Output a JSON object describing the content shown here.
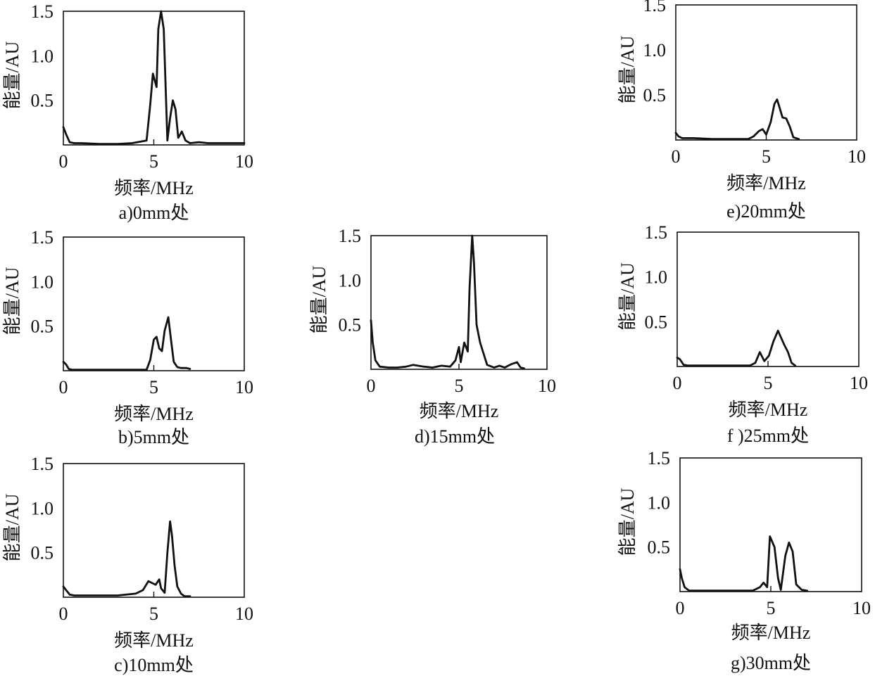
{
  "chart_data": [
    {
      "type": "line",
      "caption": "a)0mm处",
      "xlabel": "频率/MHz",
      "ylabel": "能量/AU",
      "xlim": [
        0,
        10
      ],
      "ylim": [
        0,
        1.5
      ],
      "xticks": [
        "0",
        "5",
        "10"
      ],
      "yticks": [
        "0.5",
        "1.0",
        "1.5"
      ],
      "x": [
        0,
        0.15,
        0.35,
        0.6,
        1,
        2,
        3,
        3.8,
        4.6,
        4.8,
        4.95,
        5.15,
        5.25,
        5.4,
        5.55,
        5.75,
        5.9,
        6.05,
        6.2,
        6.35,
        6.55,
        6.75,
        7,
        7.5,
        8,
        9,
        10
      ],
      "y": [
        0.2,
        0.12,
        0.03,
        0.02,
        0.02,
        0.01,
        0.01,
        0.02,
        0.05,
        0.45,
        0.8,
        0.65,
        1.3,
        1.5,
        1.3,
        0.05,
        0.3,
        0.5,
        0.4,
        0.08,
        0.15,
        0.05,
        0.02,
        0.03,
        0.02,
        0.02,
        0.02
      ]
    },
    {
      "type": "line",
      "caption": "b)5mm处",
      "xlabel": "频率/MHz",
      "ylabel": "能量/AU",
      "xlim": [
        0,
        10
      ],
      "ylim": [
        0,
        1.5
      ],
      "xticks": [
        "0",
        "5",
        "10"
      ],
      "yticks": [
        "0.5",
        "1.0",
        "1.5"
      ],
      "x": [
        0,
        0.15,
        0.3,
        0.5,
        1,
        2,
        3,
        4,
        4.6,
        4.8,
        5.0,
        5.15,
        5.3,
        5.45,
        5.6,
        5.8,
        5.95,
        6.1,
        6.3,
        6.5,
        6.8,
        7
      ],
      "y": [
        0.1,
        0.07,
        0.02,
        0.01,
        0.01,
        0.01,
        0.01,
        0.01,
        0.01,
        0.12,
        0.35,
        0.38,
        0.25,
        0.22,
        0.45,
        0.6,
        0.35,
        0.1,
        0.04,
        0.03,
        0.03,
        0.02
      ]
    },
    {
      "type": "line",
      "caption": "c)10mm处",
      "xlabel": "频率/MHz",
      "ylabel": "能量/AU",
      "xlim": [
        0,
        10
      ],
      "ylim": [
        0,
        1.5
      ],
      "xticks": [
        "0",
        "5",
        "10"
      ],
      "yticks": [
        "0.5",
        "1.0",
        "1.5"
      ],
      "x": [
        0,
        0.15,
        0.35,
        0.6,
        1,
        2,
        3,
        4,
        4.4,
        4.7,
        4.9,
        5.1,
        5.3,
        5.4,
        5.6,
        5.75,
        5.9,
        6.0,
        6.15,
        6.3,
        6.5,
        6.7,
        7
      ],
      "y": [
        0.12,
        0.08,
        0.03,
        0.02,
        0.02,
        0.02,
        0.02,
        0.04,
        0.08,
        0.18,
        0.16,
        0.14,
        0.2,
        0.1,
        0.05,
        0.5,
        0.85,
        0.7,
        0.35,
        0.12,
        0.04,
        0.01,
        0.01
      ]
    },
    {
      "type": "line",
      "caption": "d)15mm处",
      "xlabel": "频率/MHz",
      "ylabel": "能量/AU",
      "xlim": [
        0,
        10
      ],
      "ylim": [
        0,
        1.5
      ],
      "xticks": [
        "0",
        "5",
        "10"
      ],
      "yticks": [
        "0.5",
        "1.0",
        "1.5"
      ],
      "x": [
        0,
        0.1,
        0.25,
        0.5,
        1,
        1.5,
        2,
        2.4,
        3,
        3.5,
        4,
        4.5,
        4.8,
        5,
        5.1,
        5.3,
        5.5,
        5.6,
        5.75,
        5.85,
        6.0,
        6.2,
        6.6,
        7,
        7.3,
        7.6,
        7.8,
        8.0,
        8.3,
        8.5,
        8.7
      ],
      "y": [
        0.55,
        0.3,
        0.1,
        0.03,
        0.02,
        0.02,
        0.03,
        0.05,
        0.03,
        0.02,
        0.04,
        0.03,
        0.1,
        0.25,
        0.08,
        0.3,
        0.2,
        0.9,
        1.5,
        1.2,
        0.5,
        0.3,
        0.05,
        0.02,
        0.04,
        0.02,
        0.04,
        0.06,
        0.08,
        0.02,
        0.01
      ]
    },
    {
      "type": "line",
      "caption": "e)20mm处",
      "xlabel": "频率/MHz",
      "ylabel": "能量/AU",
      "xlim": [
        0,
        10
      ],
      "ylim": [
        0,
        1.5
      ],
      "xticks": [
        "0",
        "5",
        "10"
      ],
      "yticks": [
        "0.5",
        "1.0",
        "1.5"
      ],
      "x": [
        0,
        0.15,
        0.35,
        0.6,
        1,
        2,
        3,
        4,
        4.3,
        4.6,
        4.8,
        5.0,
        5.25,
        5.45,
        5.6,
        5.75,
        5.9,
        6.1,
        6.3,
        6.5,
        6.8
      ],
      "y": [
        0.08,
        0.04,
        0.02,
        0.02,
        0.02,
        0.01,
        0.01,
        0.01,
        0.04,
        0.1,
        0.12,
        0.06,
        0.2,
        0.4,
        0.45,
        0.35,
        0.25,
        0.24,
        0.15,
        0.03,
        0.01
      ]
    },
    {
      "type": "line",
      "caption": "f )25mm处",
      "xlabel": "频率/MHz",
      "ylabel": "能量/AU",
      "xlim": [
        0,
        10
      ],
      "ylim": [
        0,
        1.5
      ],
      "xticks": [
        "0",
        "5",
        "10"
      ],
      "yticks": [
        "0.5",
        "1.0",
        "1.5"
      ],
      "x": [
        0,
        0.15,
        0.35,
        0.6,
        1,
        2,
        3,
        4,
        4.3,
        4.55,
        4.8,
        5.05,
        5.3,
        5.55,
        5.7,
        5.9,
        6.1,
        6.3,
        6.5
      ],
      "y": [
        0.1,
        0.08,
        0.02,
        0.01,
        0.01,
        0.01,
        0.01,
        0.01,
        0.04,
        0.16,
        0.06,
        0.12,
        0.28,
        0.4,
        0.33,
        0.24,
        0.16,
        0.04,
        0.01
      ]
    },
    {
      "type": "line",
      "caption": "g)30mm处",
      "xlabel": "频率/MHz",
      "ylabel": "能量/AU",
      "xlim": [
        0,
        10
      ],
      "ylim": [
        0,
        1.5
      ],
      "xticks": [
        "0",
        "5",
        "10"
      ],
      "yticks": [
        "0.5",
        "1.0",
        "1.5"
      ],
      "x": [
        0,
        0.1,
        0.25,
        0.5,
        1,
        2,
        3,
        4,
        4.4,
        4.6,
        4.8,
        4.95,
        5.2,
        5.4,
        5.55,
        5.8,
        6.0,
        6.2,
        6.4,
        6.7,
        7
      ],
      "y": [
        0.25,
        0.15,
        0.05,
        0.01,
        0.01,
        0.01,
        0.01,
        0.01,
        0.05,
        0.1,
        0.05,
        0.62,
        0.5,
        0.15,
        0.02,
        0.4,
        0.55,
        0.45,
        0.08,
        0.02,
        0.01
      ]
    }
  ]
}
